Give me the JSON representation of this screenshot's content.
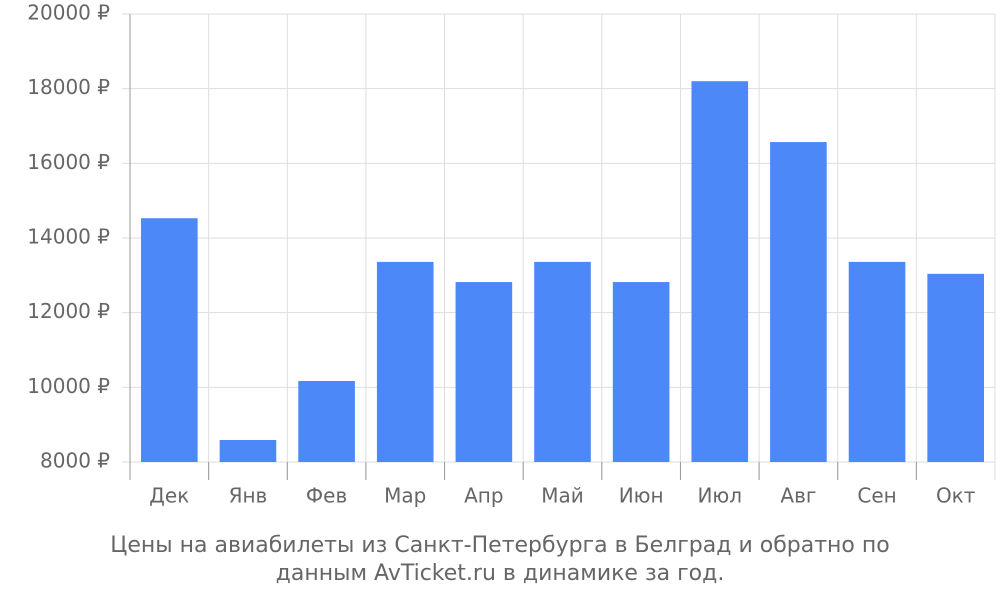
{
  "chart_data": {
    "type": "bar",
    "title": "Цены на авиабилеты из Санкт-Петербурга в Белград и обратно по данным AvTicket.ru в динамике за год.",
    "categories": [
      "Дек",
      "Янв",
      "Фев",
      "Мар",
      "Апр",
      "Май",
      "Июн",
      "Июл",
      "Авг",
      "Сен",
      "Окт"
    ],
    "values": [
      14530,
      8590,
      10170,
      13360,
      12820,
      13360,
      12820,
      18200,
      16570,
      13360,
      13040
    ],
    "color": "#4d88f9",
    "ylim": [
      8000,
      20000
    ],
    "yticks": [
      {
        "value": 8000,
        "label": "8000 ₽"
      },
      {
        "value": 10000,
        "label": "10000 ₽"
      },
      {
        "value": 12000,
        "label": "12000 ₽"
      },
      {
        "value": 14000,
        "label": "14000 ₽"
      },
      {
        "value": 16000,
        "label": "16000 ₽"
      },
      {
        "value": 18000,
        "label": "18000 ₽"
      },
      {
        "value": 20000,
        "label": "20000 ₽"
      }
    ],
    "grid": true
  }
}
